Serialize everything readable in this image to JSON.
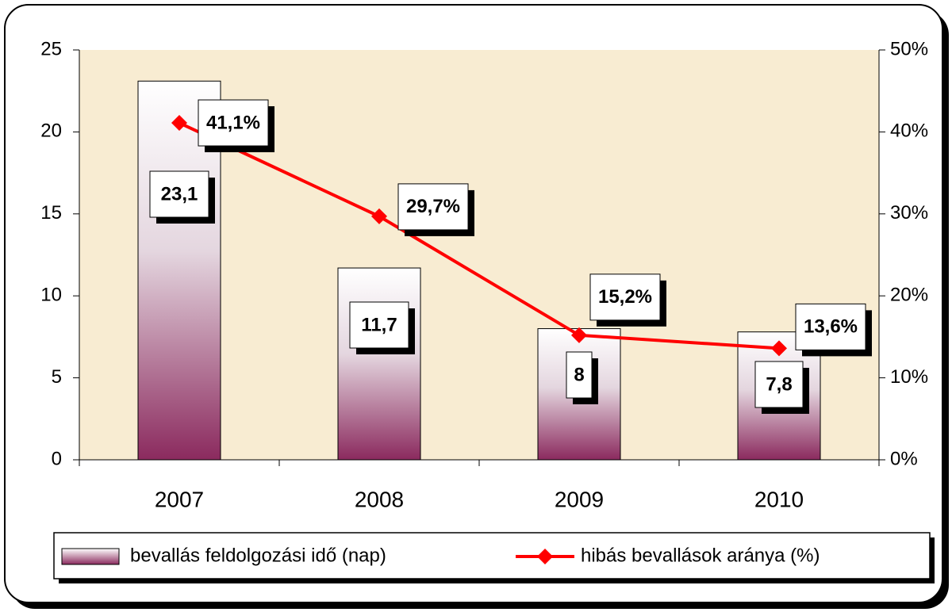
{
  "chart_data": {
    "type": "bar",
    "categories": [
      "2007",
      "2008",
      "2009",
      "2010"
    ],
    "series": [
      {
        "name": "bevallás feldolgozási idő (nap)",
        "color": "#8b2a5e",
        "values": [
          23.1,
          11.7,
          8,
          7.8
        ],
        "value_labels": [
          "23,1",
          "11,7",
          "8",
          "7,8"
        ]
      },
      {
        "name": "hibás bevallások aránya (%)",
        "color": "#ff0000",
        "type": "line",
        "axis": "y2",
        "values": [
          41.1,
          29.7,
          15.2,
          13.6
        ],
        "value_labels": [
          "41,1%",
          "29,7%",
          "15,2%",
          "13,6%"
        ]
      }
    ],
    "ylim": [
      0,
      25
    ],
    "yticks": [
      0,
      5,
      10,
      15,
      20,
      25
    ],
    "y2lim": [
      0,
      50
    ],
    "y2ticks": [
      {
        "value": 0,
        "label": "0%"
      },
      {
        "value": 10,
        "label": "10%"
      },
      {
        "value": 20,
        "label": "20%"
      },
      {
        "value": 30,
        "label": "30%"
      },
      {
        "value": 40,
        "label": "40%"
      },
      {
        "value": 50,
        "label": "50%"
      }
    ],
    "legend": "bottom"
  }
}
